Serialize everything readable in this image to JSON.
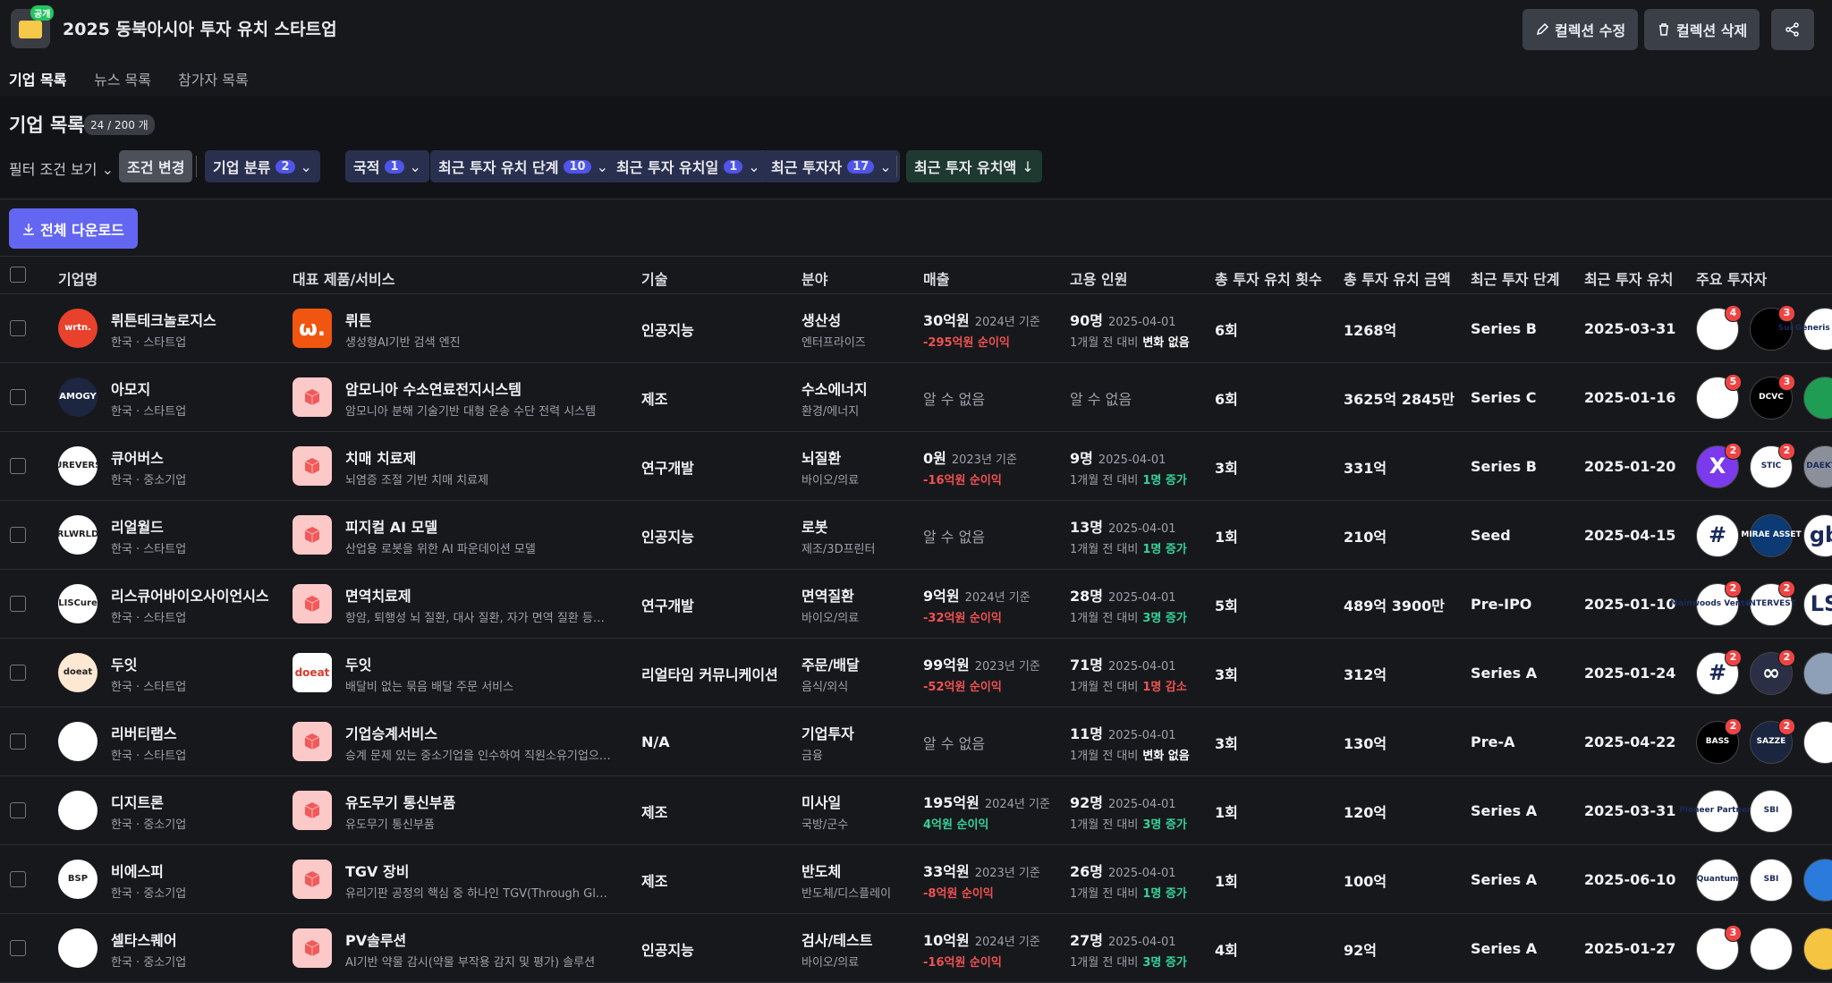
{
  "header": {
    "badge": "공개",
    "title": "2025 동북아시아 투자 유치 스타트업",
    "buttons": [
      "컬렉션 수정",
      "컬렉션 삭제"
    ]
  },
  "tabs": [
    "기업 목록",
    "뉴스 목록",
    "참가자 목록"
  ],
  "section": {
    "title": "기업 목록",
    "count": "24 / 200 개"
  },
  "filters": {
    "label": "필터 조건 보기",
    "change": "조건 변경",
    "chips": [
      {
        "label": "기업 분류",
        "count": 2
      },
      {
        "label": "국적",
        "count": 1
      },
      {
        "label": "최근 투자 유치 단계",
        "count": 10
      },
      {
        "label": "최근 투자 유치일",
        "count": 1
      },
      {
        "label": "최근 투자자",
        "count": 17
      }
    ],
    "sort": "최근 투자 유치액"
  },
  "download": "전체 다운로드",
  "table": {
    "columns": [
      "기업명",
      "대표 제품/서비스",
      "기술",
      "분야",
      "매출",
      "고용 인원",
      "총 투자 유치 횟수",
      "총 투자 유치 금액",
      "최근 투자 단계",
      "최근 투자 유치",
      "주요 투자자"
    ],
    "change_prefix": "1개월 전 대비",
    "rows": [
      {
        "name": "뤼튼테크놀로지스",
        "sub": "한국 · 스타트업",
        "logo": "wrtn.",
        "logo_bg": "#e8412c",
        "product": "뤼튼",
        "product_logo": "ѡ.",
        "product_bg": "#f0560f",
        "desc": "생성형AI기반 검색 엔진",
        "tech": "인공지능",
        "field": "생산성",
        "field_sub": "엔터프라이즈",
        "revenue": {
          "value": "30억원",
          "basis": "2024년 기준",
          "profit": "-295억원 순이익",
          "profit_color": "#f05252"
        },
        "employees": {
          "value": "90명",
          "date": "2025-04-01",
          "change": "변화 없음",
          "change_color": "#ffffff"
        },
        "rounds": "6회",
        "amount": "1268억",
        "stage": "Series B",
        "date": "2025-03-31",
        "investors": [
          {
            "bg": "#ffffff",
            "badge": 4
          },
          {
            "bg": "#000000",
            "badge": 3
          },
          {
            "label": "Sui Generis Partners",
            "bg": "#ffffff"
          }
        ]
      },
      {
        "name": "아모지",
        "sub": "한국 · 스타트업",
        "logo": "AMOGY",
        "logo_bg": "#1c2640",
        "product": "암모니아 수소연료전지시스템",
        "desc": "암모니아 분해 기술기반 대형 운송 수단 전력 시스템",
        "tech": "제조",
        "field": "수소에너지",
        "field_sub": "환경/에너지",
        "revenue": "알 수 없음",
        "employees": "알 수 없음",
        "rounds": "6회",
        "amount": "3625억 2845만",
        "stage": "Series C",
        "date": "2025-01-16",
        "investors": [
          {
            "bg": "#ffffff",
            "badge": 5
          },
          {
            "label": "DCVC",
            "bg": "#000000",
            "badge": 3
          },
          {
            "bg": "#1f9d55"
          }
        ]
      },
      {
        "name": "큐어버스",
        "sub": "한국 · 중소기업",
        "logo": "CUREVERSE",
        "logo_bg": "#ffffff",
        "product": "치매 치료제",
        "desc": "뇌염증 조절 기반 치매 치료제",
        "tech": "연구개발",
        "field": "뇌질환",
        "field_sub": "바이오/의료",
        "revenue": {
          "value": "0원",
          "basis": "2023년 기준",
          "profit": "-16억원 순이익",
          "profit_color": "#f05252"
        },
        "employees": {
          "value": "9명",
          "date": "2025-04-01",
          "change": "1명 증가",
          "change_color": "#34d399"
        },
        "rounds": "3회",
        "amount": "331억",
        "stage": "Series B",
        "date": "2025-01-20",
        "investors": [
          {
            "label": "X",
            "bg": "#7c3aed",
            "badge": 2
          },
          {
            "label": "STIC",
            "bg": "#ffffff",
            "badge": 2
          },
          {
            "label": "DAEKYO",
            "bg": "#8b8f99"
          }
        ]
      },
      {
        "name": "리얼월드",
        "sub": "한국 · 스타트업",
        "logo": "RLWRLD",
        "logo_bg": "#ffffff",
        "product": "피지컬 AI 모델",
        "desc": "산업용 로봇을 위한 AI 파운데이션 모델",
        "tech": "인공지능",
        "field": "로봇",
        "field_sub": "제조/3D프린터",
        "revenue": "알 수 없음",
        "employees": {
          "value": "13명",
          "date": "2025-04-01",
          "change": "1명 증가",
          "change_color": "#34d399"
        },
        "rounds": "1회",
        "amount": "210억",
        "stage": "Seed",
        "date": "2025-04-15",
        "investors": [
          {
            "label": "#",
            "bg": "#ffffff"
          },
          {
            "label": "MIRAE ASSET",
            "bg": "#0b3a75"
          },
          {
            "label": "gb",
            "bg": "#ffffff"
          }
        ]
      },
      {
        "name": "리스큐어바이오사이언시스",
        "sub": "한국 · 스타트업",
        "logo": "LISCure",
        "logo_bg": "#ffffff",
        "product": "면역치료제",
        "desc": "항암, 퇴행성 뇌 질환, 대사 질환, 자가 면역 질환 등의 …",
        "tech": "연구개발",
        "field": "면역질환",
        "field_sub": "바이오/의료",
        "revenue": {
          "value": "9억원",
          "basis": "2024년 기준",
          "profit": "-32억원 순이익",
          "profit_color": "#f05252"
        },
        "employees": {
          "value": "28명",
          "date": "2025-04-01",
          "change": "3명 증가",
          "change_color": "#34d399"
        },
        "rounds": "5회",
        "amount": "489억 3900만",
        "stage": "Pre-IPO",
        "date": "2025-01-10",
        "investors": [
          {
            "label": "Mainwoods Ventures",
            "bg": "#ffffff",
            "badge": 2
          },
          {
            "label": "INTERVEST",
            "bg": "#ffffff",
            "badge": 2
          },
          {
            "label": "LS",
            "bg": "#ffffff"
          }
        ]
      },
      {
        "name": "두잇",
        "sub": "한국 · 스타트업",
        "logo": "doeat",
        "logo_bg": "#fde8d4",
        "product": "두잇",
        "product_logo": "doeat",
        "product_bg": "#ffffff",
        "desc": "배달비 없는 묶음 배달 주문 서비스",
        "tech": "리얼타임 커뮤니케이션",
        "field": "주문/배달",
        "field_sub": "음식/외식",
        "revenue": {
          "value": "99억원",
          "basis": "2023년 기준",
          "profit": "-52억원 순이익",
          "profit_color": "#f05252"
        },
        "employees": {
          "value": "71명",
          "date": "2025-04-01",
          "change": "1명 감소",
          "change_color": "#f05252"
        },
        "rounds": "3회",
        "amount": "312억",
        "stage": "Series A",
        "date": "2025-01-24",
        "investors": [
          {
            "label": "#",
            "bg": "#ffffff",
            "badge": 2
          },
          {
            "label": "∞",
            "bg": "#2a2f45",
            "badge": 2
          },
          {
            "bg": "#8ea0b8"
          }
        ]
      },
      {
        "name": "리버티랩스",
        "sub": "한국 · 스타트업",
        "logo_bg": "#ffffff",
        "product": "기업승계서비스",
        "desc": "승계 문제 있는 중소기업을 인수하여 직원소유기업으…",
        "tech": "N/A",
        "field": "기업투자",
        "field_sub": "금융",
        "revenue": "알 수 없음",
        "employees": {
          "value": "11명",
          "date": "2025-04-01",
          "change": "변화 없음",
          "change_color": "#ffffff"
        },
        "rounds": "3회",
        "amount": "130억",
        "stage": "Pre-A",
        "date": "2025-04-22",
        "investors": [
          {
            "label": "BASS",
            "bg": "#000000",
            "badge": 2
          },
          {
            "label": "SAZZE",
            "bg": "#1a2540",
            "badge": 2
          },
          {
            "bg": "#ffffff"
          }
        ]
      },
      {
        "name": "디지트론",
        "sub": "한국 · 중소기업",
        "logo_bg": "#ffffff",
        "product": "유도무기 통신부품",
        "desc": "유도무기 통신부품",
        "tech": "제조",
        "field": "미사일",
        "field_sub": "국방/군수",
        "revenue": {
          "value": "195억원",
          "basis": "2024년 기준",
          "profit": "4억원 순이익",
          "profit_color": "#34d399"
        },
        "employees": {
          "value": "92명",
          "date": "2025-04-01",
          "change": "3명 증가",
          "change_color": "#34d399"
        },
        "rounds": "1회",
        "amount": "120억",
        "stage": "Series A",
        "date": "2025-03-31",
        "investors": [
          {
            "label": "Pioneer Partners",
            "bg": "#ffffff"
          },
          {
            "label": "SBI",
            "bg": "#ffffff"
          }
        ]
      },
      {
        "name": "비에스피",
        "sub": "한국 · 중소기업",
        "logo": "BSP",
        "logo_bg": "#ffffff",
        "product": "TGV 장비",
        "desc": "유리기판 공정의 핵심 중 하나인 TGV(Through Glas…",
        "tech": "제조",
        "field": "반도체",
        "field_sub": "반도체/디스플레이",
        "revenue": {
          "value": "33억원",
          "basis": "2023년 기준",
          "profit": "-8억원 순이익",
          "profit_color": "#f05252"
        },
        "employees": {
          "value": "26명",
          "date": "2025-04-01",
          "change": "1명 증가",
          "change_color": "#34d399"
        },
        "rounds": "1회",
        "amount": "100억",
        "stage": "Series A",
        "date": "2025-06-10",
        "investors": [
          {
            "label": "Quantum",
            "bg": "#ffffff"
          },
          {
            "label": "SBI",
            "bg": "#ffffff"
          },
          {
            "bg": "#2b7bdc"
          }
        ]
      },
      {
        "name": "셀타스퀘어",
        "sub": "한국 · 중소기업",
        "logo_bg": "#ffffff",
        "product": "PV솔루션",
        "desc": "AI기반 약물 감시(약물 부작용 감지 및 평가) 솔루션",
        "tech": "인공지능",
        "field": "검사/테스트",
        "field_sub": "바이오/의료",
        "revenue": {
          "value": "10억원",
          "basis": "2024년 기준",
          "profit": "-16억원 순이익",
          "profit_color": "#f05252"
        },
        "employees": {
          "value": "27명",
          "date": "2025-04-01",
          "change": "3명 증가",
          "change_color": "#34d399"
        },
        "rounds": "4회",
        "amount": "92억",
        "stage": "Series A",
        "date": "2025-01-27",
        "investors": [
          {
            "bg": "#ffffff",
            "badge": 3
          },
          {
            "bg": "#ffffff"
          },
          {
            "bg": "#f5c542"
          }
        ]
      }
    ]
  }
}
